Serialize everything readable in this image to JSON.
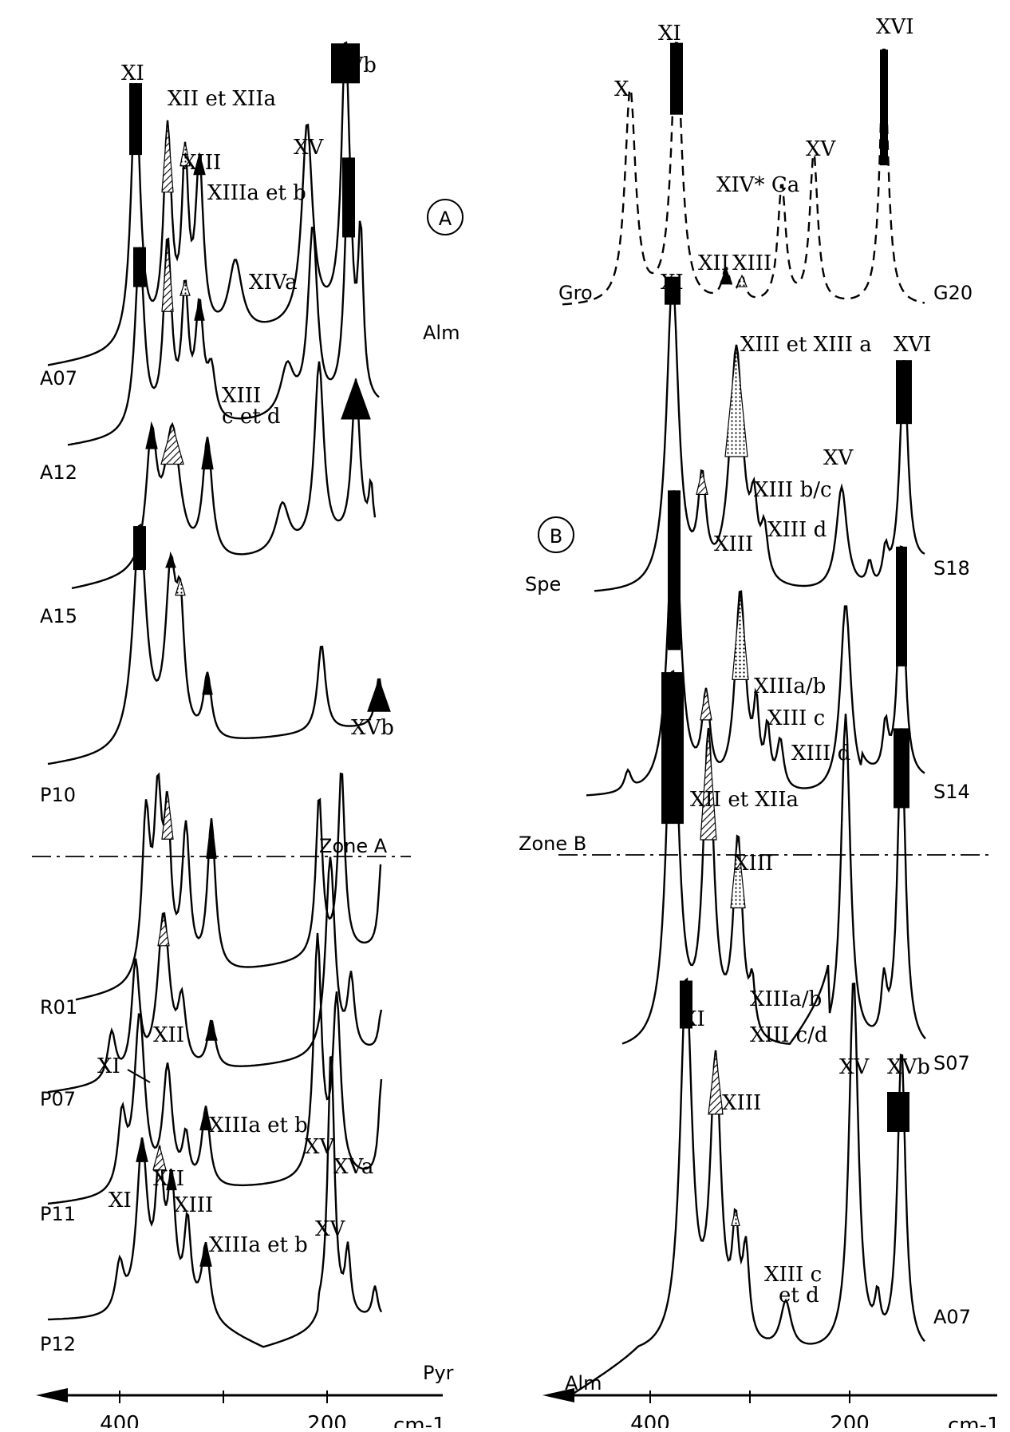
{
  "chart_data": [
    {
      "type": "line",
      "panel_label": "A",
      "x_unit": "cm-1",
      "x_axis": {
        "reversed": true,
        "ticks": [
          400,
          200
        ],
        "tick_labels": [
          "400",
          "200"
        ]
      },
      "series": [
        {
          "name": "A07",
          "end_label": "Alm",
          "peaks": [
            "XI",
            "XII et XIIa",
            "XIII",
            "XIIIa et b",
            "XV",
            "XVb"
          ]
        },
        {
          "name": "A12",
          "peaks": [
            "XIVa",
            "XIII c et d"
          ]
        },
        {
          "name": "A15"
        },
        {
          "name": "P10",
          "peaks": [
            "XVb"
          ]
        },
        {
          "name": "R01"
        },
        {
          "name": "P07",
          "peaks": [
            "XI",
            "XII"
          ]
        },
        {
          "name": "P11",
          "peaks": [
            "XIIIa et b",
            "XV",
            "XVa"
          ]
        },
        {
          "name": "P12",
          "end_label": "Pyr",
          "peaks": [
            "XI",
            "XII",
            "XIII",
            "XIIIa et b",
            "XV"
          ]
        }
      ],
      "zone_label": "Zone A"
    },
    {
      "type": "line",
      "panel_label": "B",
      "x_unit": "cm-1",
      "x_axis": {
        "reversed": true,
        "ticks": [
          400,
          200
        ],
        "tick_labels": [
          "400",
          "200"
        ]
      },
      "series": [
        {
          "name": "G20",
          "start_label": "Gro",
          "dashed": true,
          "peaks": [
            "X",
            "XI",
            "XII",
            "XIII",
            "XIV* Ca",
            "XV",
            "XVI"
          ]
        },
        {
          "name": "S18",
          "start_label": "Spe",
          "peaks": [
            "XI",
            "XIII et XIII a",
            "XVI",
            "XIII b/c",
            "XIII d",
            "XV"
          ]
        },
        {
          "name": "S14",
          "peaks": [
            "XIII",
            "XIIIa/b",
            "XIII c",
            "XIII d"
          ]
        },
        {
          "name": "S07",
          "peaks": [
            "XII et XIIa",
            "XIII",
            "XIIIa/b",
            "XIII c/d"
          ]
        },
        {
          "name": "A07",
          "start_label": "Alm",
          "peaks": [
            "XI",
            "XIII",
            "XV",
            "XVb",
            "XIII c et d"
          ]
        }
      ],
      "zone_label": "Zone B"
    }
  ]
}
